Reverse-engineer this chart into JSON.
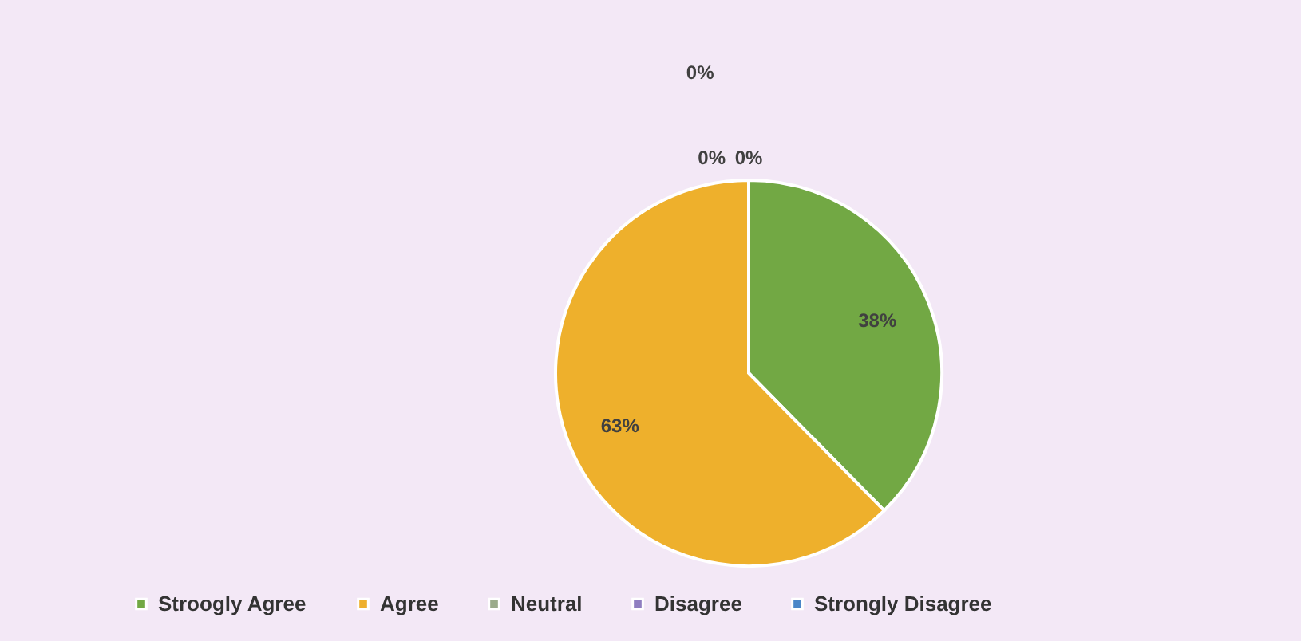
{
  "chart_data": {
    "type": "pie",
    "categories": [
      "Stroogly Agree",
      "Agree",
      "Neutral",
      "Disagree",
      "Strongly Disagree"
    ],
    "values": [
      38,
      63,
      0,
      0,
      0
    ],
    "colors": [
      "#72a844",
      "#eeb02c",
      "#9aab8a",
      "#8f7ec0",
      "#4a86c8"
    ],
    "value_labels": [
      "38%",
      "63%",
      "0%",
      "0%",
      "0%"
    ],
    "legend": "bottom"
  }
}
